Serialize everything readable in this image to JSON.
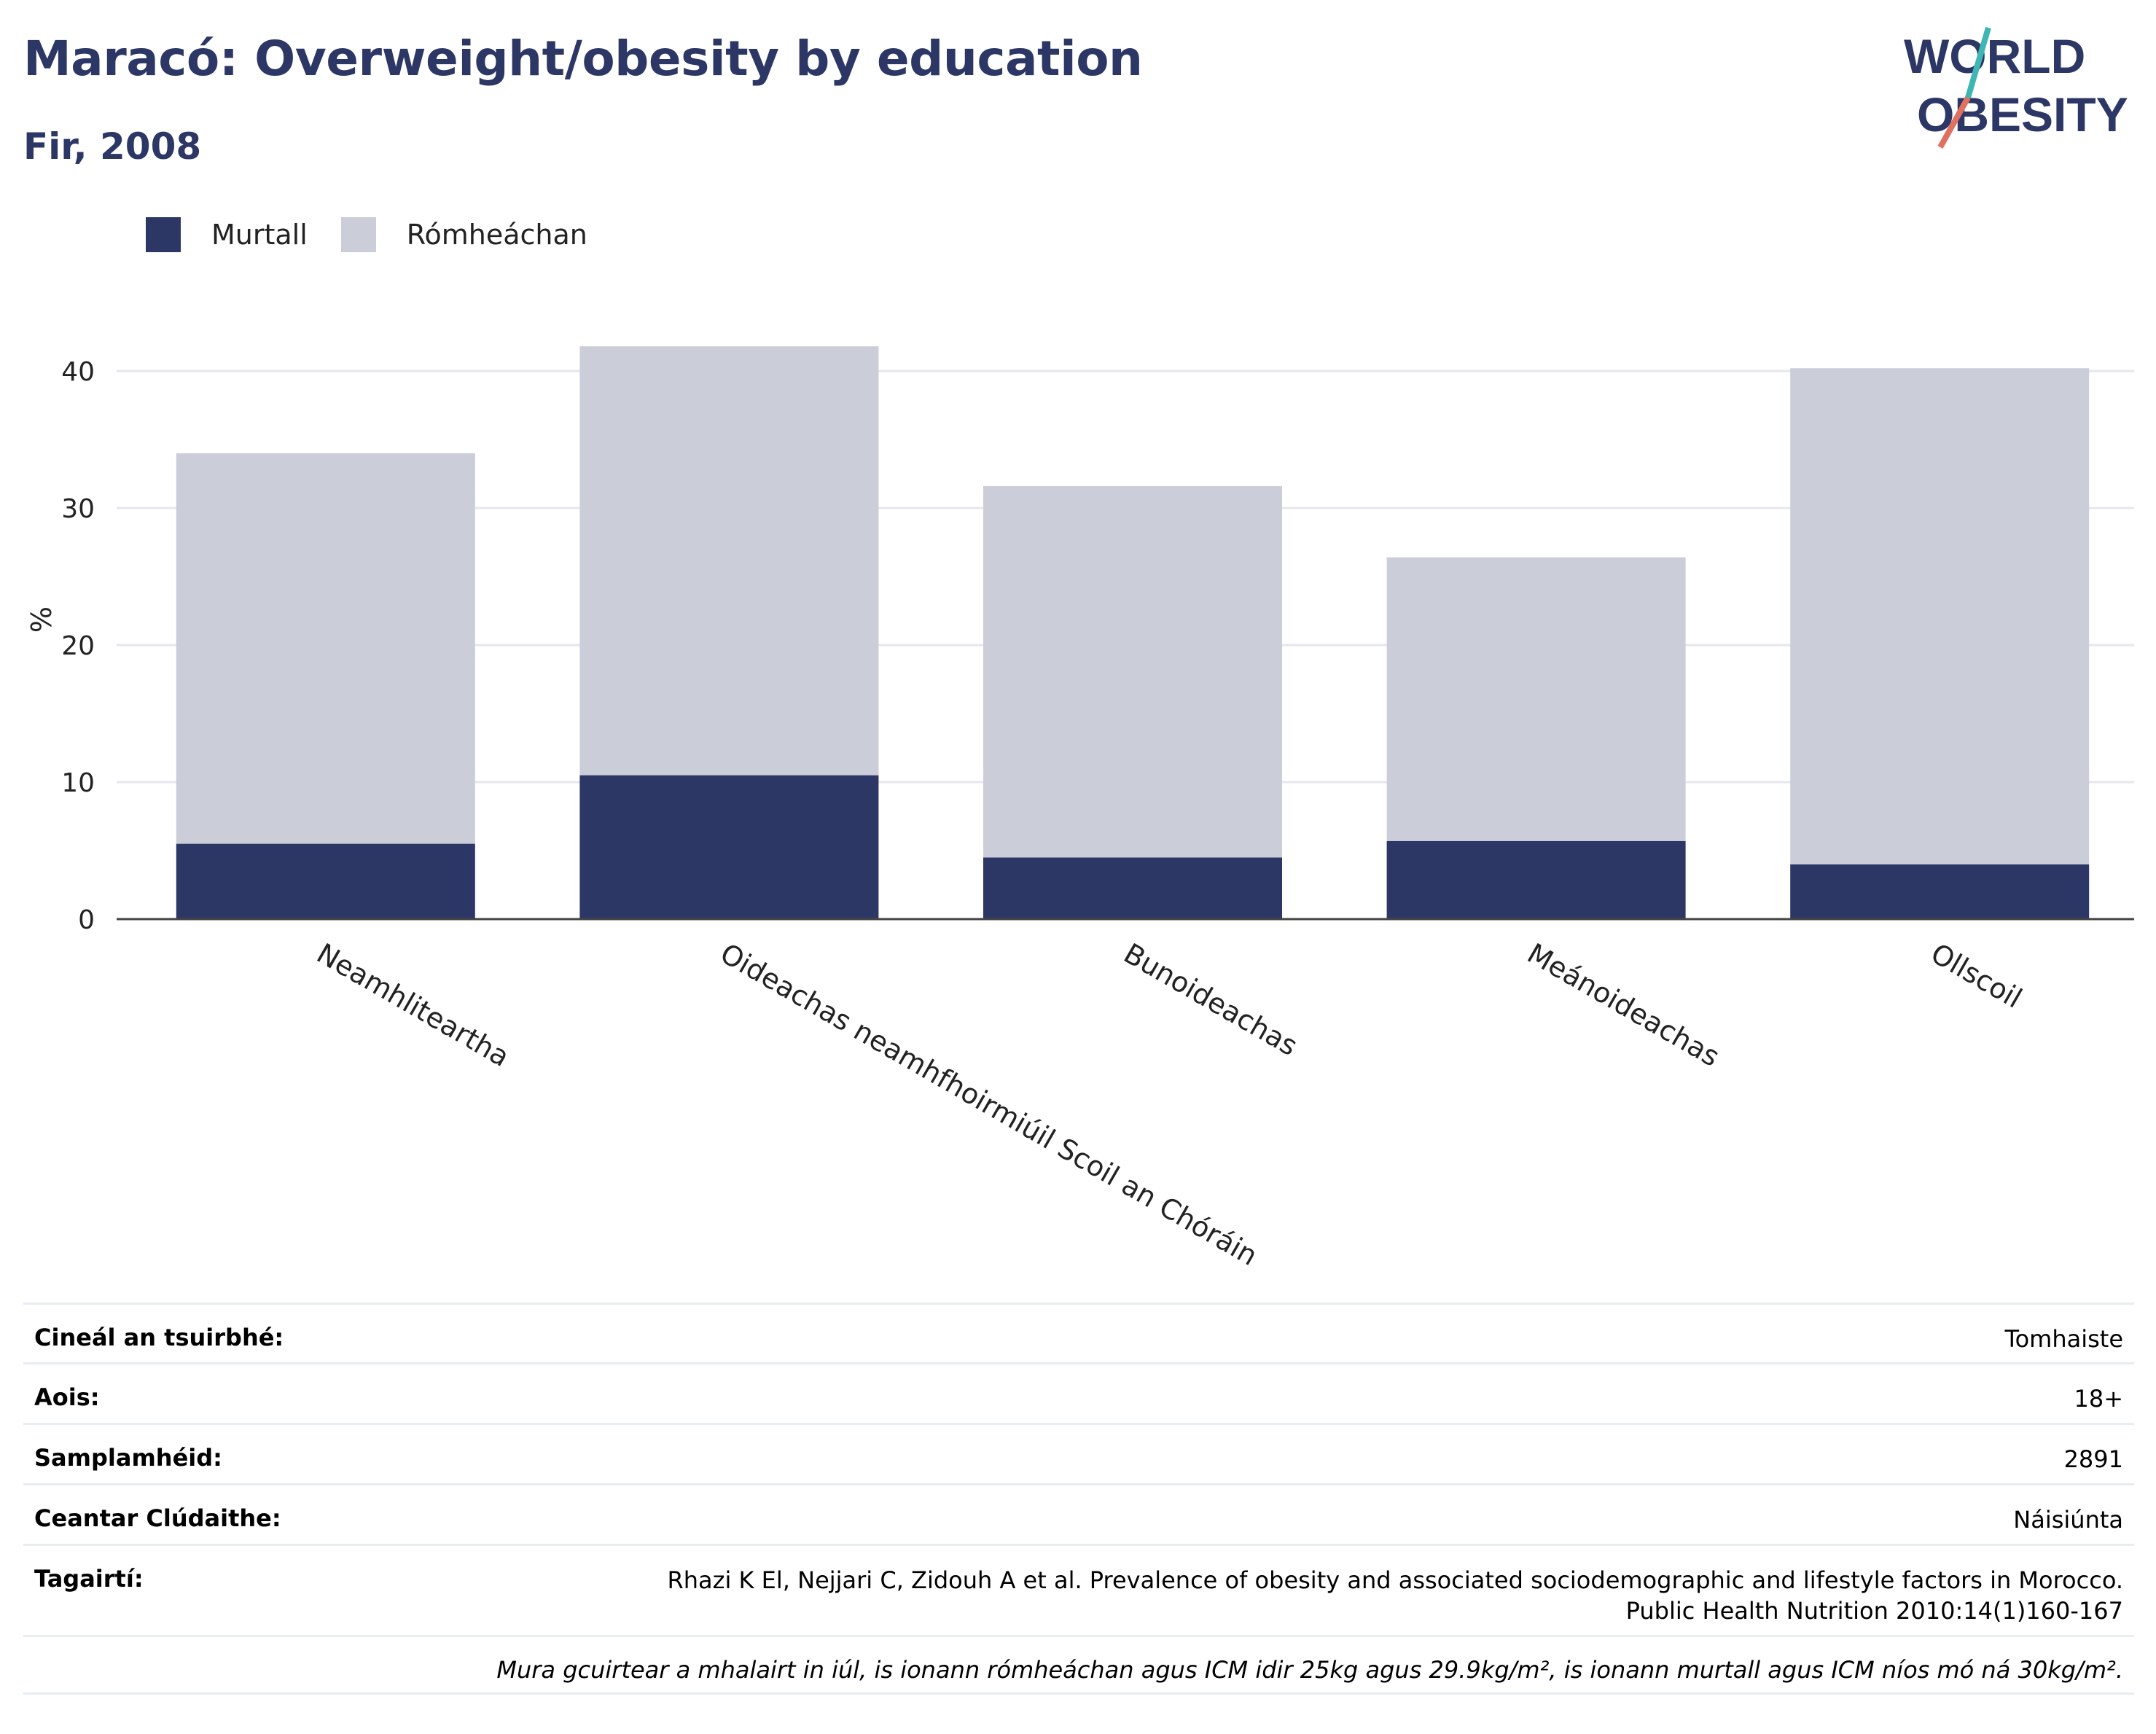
{
  "header": {
    "title": "Maracó: Overweight/obesity by education",
    "subtitle": "Fir, 2008"
  },
  "logo": {
    "line1": "WORLD",
    "line2": "OBESITY"
  },
  "colors": {
    "obese": "#2c3766",
    "overweight": "#cbcdd9",
    "title": "#2c3766",
    "axis": "#444444",
    "grid": "#e6e6ee"
  },
  "chart_data": {
    "type": "bar",
    "stacked": true,
    "categories": [
      "Neamhliteartha",
      "Oideachas neamhfhoirmiúil Scoil an Chóráin",
      "Bunoideachas",
      "Meánoideachas",
      "Ollscoil"
    ],
    "series": [
      {
        "name": "Murtall",
        "values": [
          5.5,
          10.5,
          4.5,
          5.7,
          4.0
        ]
      },
      {
        "name": "Rómheáchan",
        "values": [
          28.5,
          31.3,
          27.1,
          20.7,
          36.2
        ]
      }
    ],
    "ylabel": "%",
    "ylim": [
      0,
      42
    ],
    "yticks": [
      0,
      10,
      20,
      30,
      40
    ],
    "grid": true,
    "legend": "top-left"
  },
  "info": {
    "rows": [
      {
        "label": "Cineál an tsuirbhé:",
        "value": "Tomhaiste"
      },
      {
        "label": "Aois:",
        "value": "18+"
      },
      {
        "label": "Samplamhéid:",
        "value": "2891"
      },
      {
        "label": "Ceantar Clúdaithe:",
        "value": "Náisiúnta"
      },
      {
        "label": "Tagairtí:",
        "value": "Rhazi K El, Nejjari C, Zidouh A et al. Prevalence of obesity and associated sociodemographic and lifestyle factors in Morocco. Public Health Nutrition 2010:14(1)160-167"
      }
    ],
    "note": "Mura gcuirtear a mhalairt in iúl, is ionann rómheáchan agus ICM idir 25kg agus 29.9kg/m², is ionann murtall agus ICM níos mó ná 30kg/m²."
  }
}
